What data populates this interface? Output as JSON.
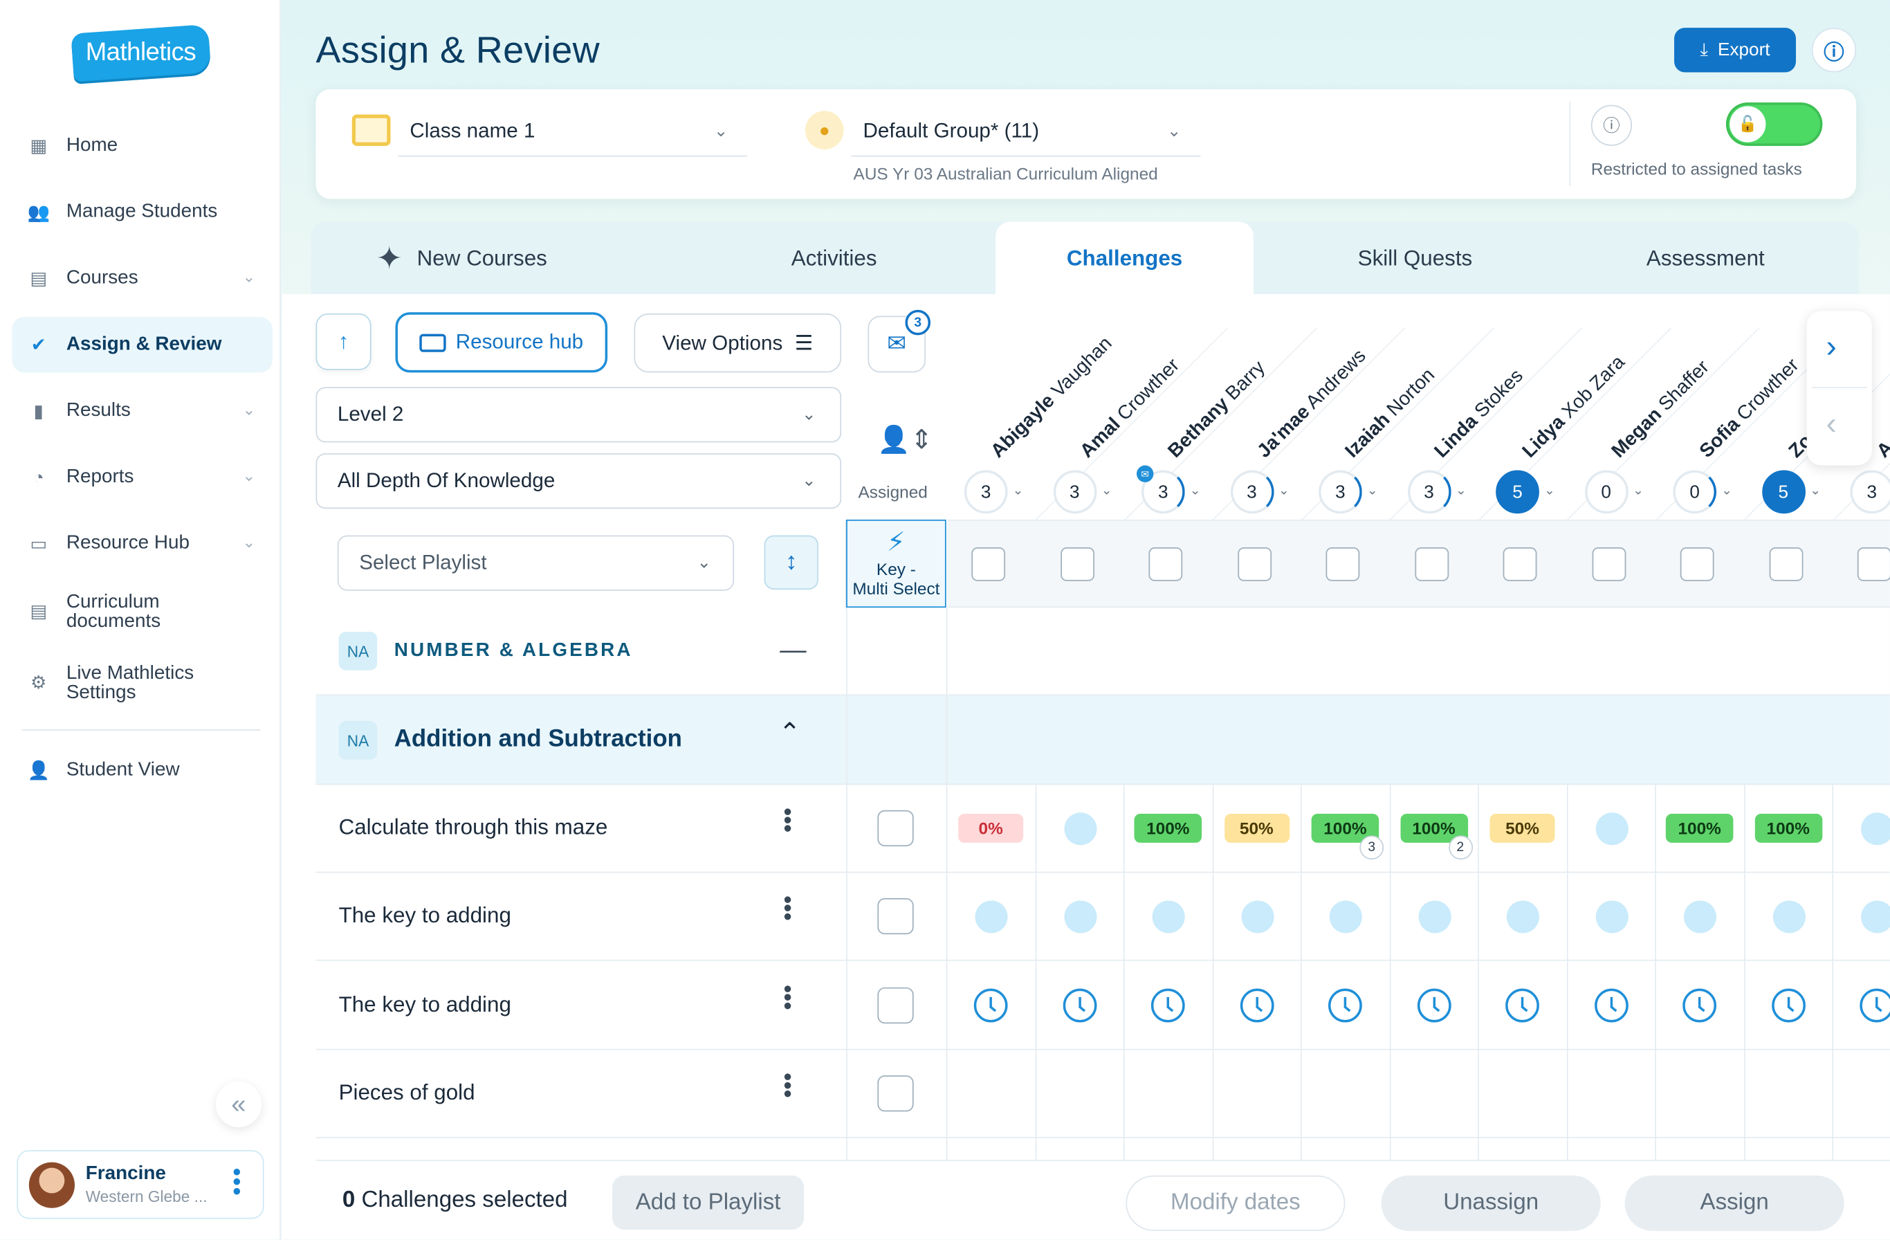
{
  "app": {
    "logo_text": "Mathletics",
    "page_title": "Assign & Review"
  },
  "sidebar": {
    "items": [
      {
        "label": "Home",
        "icon": "grid-icon",
        "has_chevron": false
      },
      {
        "label": "Manage Students",
        "icon": "students-icon",
        "has_chevron": false
      },
      {
        "label": "Courses",
        "icon": "book-icon",
        "has_chevron": true
      },
      {
        "label": "Assign & Review",
        "icon": "check-badge-icon",
        "has_chevron": false,
        "active": true
      },
      {
        "label": "Results",
        "icon": "bar-chart-icon",
        "has_chevron": true
      },
      {
        "label": "Reports",
        "icon": "pie-chart-icon",
        "has_chevron": true
      },
      {
        "label": "Resource Hub",
        "icon": "tray-icon",
        "has_chevron": true
      },
      {
        "label": "Curriculum documents",
        "icon": "document-icon",
        "has_chevron": false
      },
      {
        "label": "Live Mathletics Settings",
        "icon": "settings-icon",
        "has_chevron": false
      },
      {
        "label": "Student View",
        "icon": "student-view-icon",
        "has_chevron": false
      }
    ],
    "user": {
      "name": "Francine",
      "org": "Western Glebe ..."
    }
  },
  "header": {
    "export_label": "Export"
  },
  "filters": {
    "class_name": "Class name 1",
    "group": "Default Group* (11)",
    "curriculum": "AUS Yr 03 Australian Curriculum Aligned",
    "restricted_label": "Restricted to assigned tasks",
    "restricted_on": true
  },
  "tabs": [
    {
      "label": "New Courses"
    },
    {
      "label": "Activities"
    },
    {
      "label": "Challenges",
      "active": true
    },
    {
      "label": "Skill Quests"
    },
    {
      "label": "Assessment"
    }
  ],
  "toolbar": {
    "resource_hub_label": "Resource hub",
    "view_options_label": "View Options",
    "mail_badge": "3",
    "level": "Level 2",
    "depth": "All Depth Of Knowledge",
    "playlist_placeholder": "Select Playlist",
    "assigned_label": "Assigned",
    "key_label_1": "Key -",
    "key_label_2": "Multi Select"
  },
  "students": [
    {
      "first": "Abigayle",
      "last": "Vaughan",
      "count": "3",
      "progress": "none"
    },
    {
      "first": "Amal",
      "last": "Crowther",
      "count": "3",
      "progress": "none"
    },
    {
      "first": "Bethany",
      "last": "Barry",
      "count": "3",
      "progress": "partial",
      "mail": true
    },
    {
      "first": "Ja'mae",
      "last": "Andrews",
      "count": "3",
      "progress": "partial"
    },
    {
      "first": "Izaiah",
      "last": "Norton",
      "count": "3",
      "progress": "partial"
    },
    {
      "first": "Linda",
      "last": "Stokes",
      "count": "3",
      "progress": "partial"
    },
    {
      "first": "Lidya",
      "last": "Xob Zara",
      "count": "5",
      "progress": "full"
    },
    {
      "first": "Megan",
      "last": "Shaffer",
      "count": "0",
      "progress": "none"
    },
    {
      "first": "Sofia",
      "last": "Crowther",
      "count": "0",
      "progress": "partial"
    },
    {
      "first": "Zo",
      "last": "",
      "count": "5",
      "progress": "full"
    },
    {
      "first": "A",
      "last": "",
      "count": "3",
      "progress": "none"
    }
  ],
  "grid": {
    "strand_tag": "NA",
    "strand_name": "NUMBER & ALGEBRA",
    "topic_tag": "NA",
    "topic_name": "Addition and Subtraction",
    "rows": [
      {
        "label": "Calculate through this maze",
        "cells": [
          {
            "type": "chip",
            "color": "red",
            "text": "0%"
          },
          {
            "type": "dot"
          },
          {
            "type": "chip",
            "color": "green",
            "text": "100%"
          },
          {
            "type": "chip",
            "color": "yellow",
            "text": "50%"
          },
          {
            "type": "chip",
            "color": "green",
            "text": "100%",
            "badge": "3"
          },
          {
            "type": "chip",
            "color": "green",
            "text": "100%",
            "badge": "2"
          },
          {
            "type": "chip",
            "color": "yellow",
            "text": "50%"
          },
          {
            "type": "dot"
          },
          {
            "type": "chip",
            "color": "green",
            "text": "100%"
          },
          {
            "type": "chip",
            "color": "green",
            "text": "100%"
          },
          {
            "type": "dot"
          }
        ]
      },
      {
        "label": "The key to adding",
        "cells_type": "dot"
      },
      {
        "label": "The key to adding",
        "cells_type": "clock"
      },
      {
        "label": "Pieces of gold",
        "cells_type": "empty"
      }
    ]
  },
  "action_bar": {
    "selected_count": "0",
    "selected_suffix": " Challenges selected",
    "add_to_playlist": "Add to Playlist",
    "modify_dates": "Modify dates",
    "unassign": "Unassign",
    "assign": "Assign"
  }
}
